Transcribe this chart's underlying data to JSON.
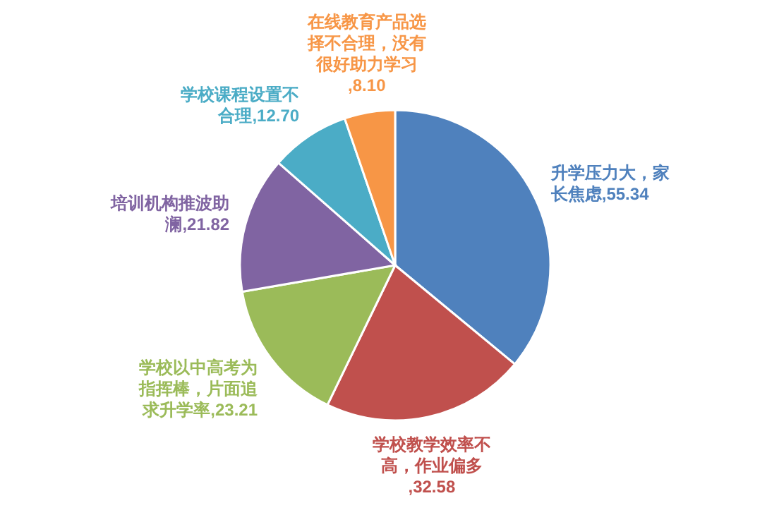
{
  "chart_data": {
    "type": "pie",
    "categories": [
      "升学压力大，家长焦虑",
      "学校教学效率不高，作业偏多",
      "学校以中高考为指挥棒，片面追求升学率",
      "培训机构推波助澜",
      "学校课程设置不合理",
      "在线教育产品选择不合理，没有很好助力学习"
    ],
    "values": [
      55.34,
      32.58,
      23.21,
      21.82,
      12.7,
      8.1
    ],
    "colors": [
      "#4f81bd",
      "#c0504d",
      "#9bbb59",
      "#8064a2",
      "#4bacc6",
      "#f79646"
    ],
    "value_labels": [
      ",55.34",
      ",32.58",
      ",23.21",
      ",21.82",
      ",12.70",
      ",8.10"
    ]
  }
}
